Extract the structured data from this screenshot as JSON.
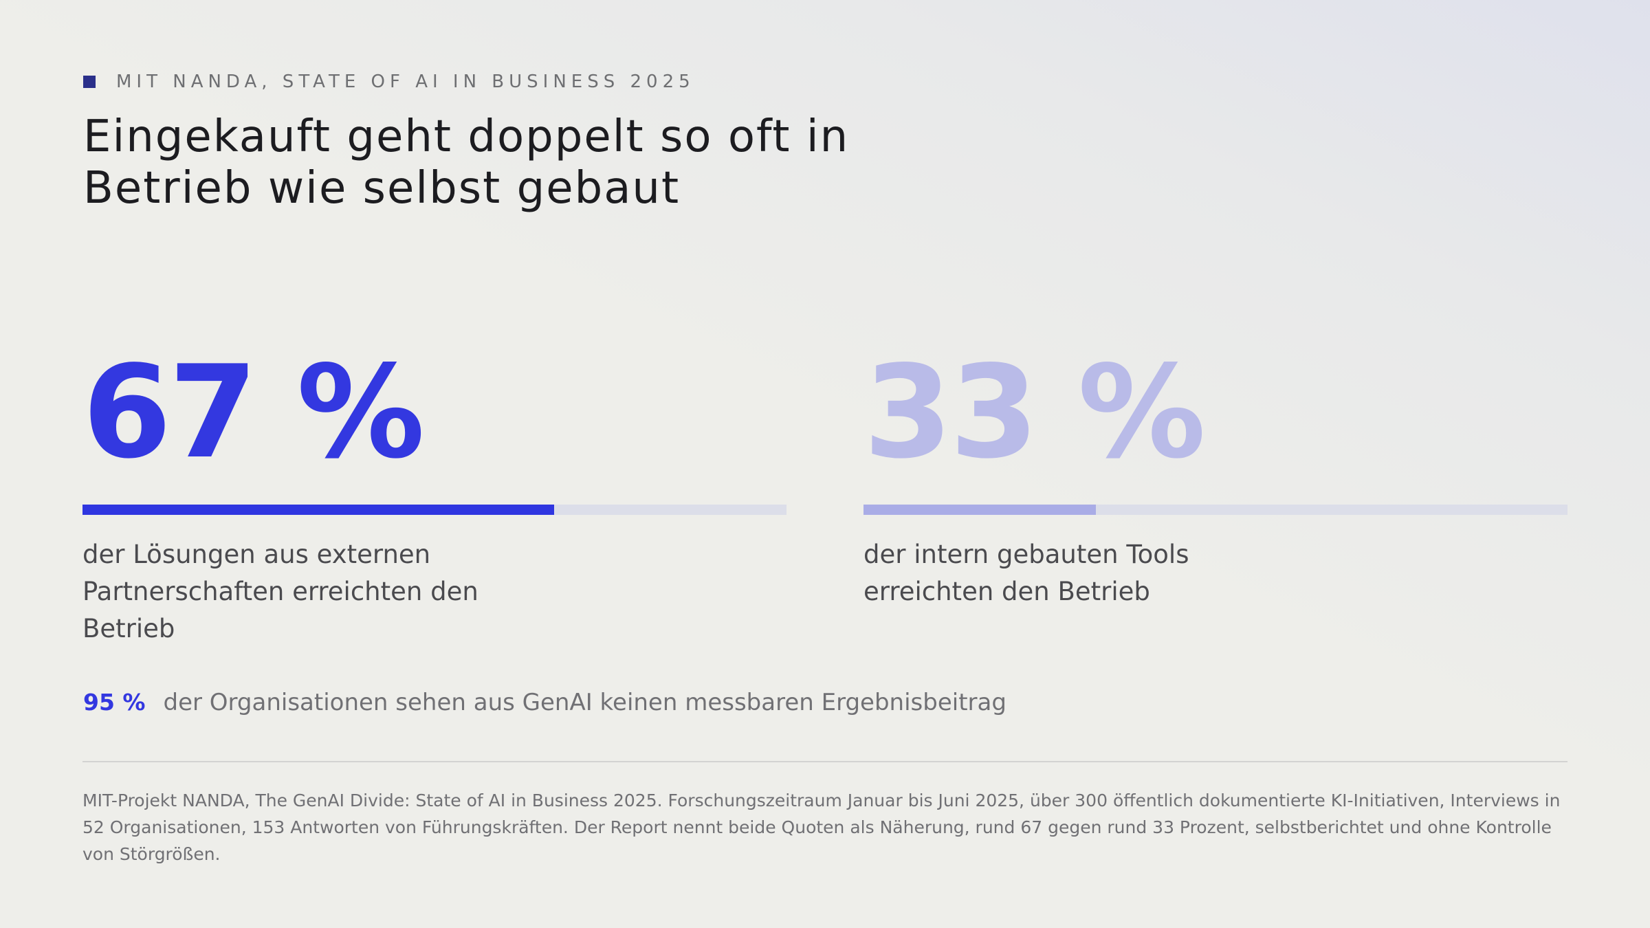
{
  "kicker": "MIT NANDA, State of AI in Business 2025",
  "headline": "Eingekauft geht doppelt so oft in Betrieb wie selbst gebaut",
  "colors": {
    "accent": "#3338e0",
    "accent_muted": "#b9bbe8",
    "bar_fill_primary": "#2f36e0",
    "bar_fill_secondary": "#a9ace6",
    "bar_track": "#dcdee9",
    "kicker_square": "#2a2f8a"
  },
  "chart_data": {
    "type": "bar",
    "categories": [
      "extern",
      "intern"
    ],
    "series": [
      {
        "values": [
          67,
          33
        ]
      }
    ],
    "ylim": [
      0,
      100
    ],
    "unit": "%",
    "stats": [
      {
        "value_label": "67 %",
        "value": 67,
        "caption": "der Lösungen aus externen Partnerschaften erreichten den Betrieb"
      },
      {
        "value_label": "33 %",
        "value": 33,
        "caption": "der intern gebauten Tools erreichten den Betrieb"
      }
    ],
    "annotation": {
      "value_label": "95 %",
      "value": 95,
      "text": "der Organisationen sehen aus GenAI keinen messbaren Ergebnisbeitrag"
    }
  },
  "source": "MIT-Projekt NANDA, The GenAI Divide: State of AI in Business 2025. Forschungszeitraum Januar bis Juni 2025, über 300 öffentlich dokumentierte KI-Initiativen, Interviews in 52 Organisationen, 153 Antworten von Führungskräften. Der Report nennt beide Quoten als Näherung, rund 67 gegen rund 33 Prozent, selbstberichtet und ohne Kontrolle von Störgrößen."
}
